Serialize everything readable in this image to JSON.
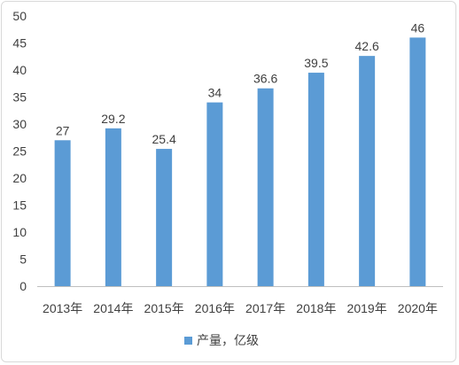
{
  "chart_data": {
    "type": "bar",
    "categories": [
      "2013年",
      "2014年",
      "2015年",
      "2016年",
      "2017年",
      "2018年",
      "2019年",
      "2020年"
    ],
    "series": [
      {
        "name": "产量，亿级",
        "values": [
          27,
          29.2,
          25.4,
          34,
          36.6,
          39.5,
          42.6,
          46
        ],
        "color": "#5b9bd5"
      }
    ],
    "data_labels": [
      "27",
      "29.2",
      "25.4",
      "34",
      "36.6",
      "39.5",
      "42.6",
      "46"
    ],
    "yticks": [
      0,
      5,
      10,
      15,
      20,
      25,
      30,
      35,
      40,
      45,
      50
    ],
    "ylim": [
      0,
      50
    ],
    "grid": false,
    "legend_position": "bottom"
  }
}
